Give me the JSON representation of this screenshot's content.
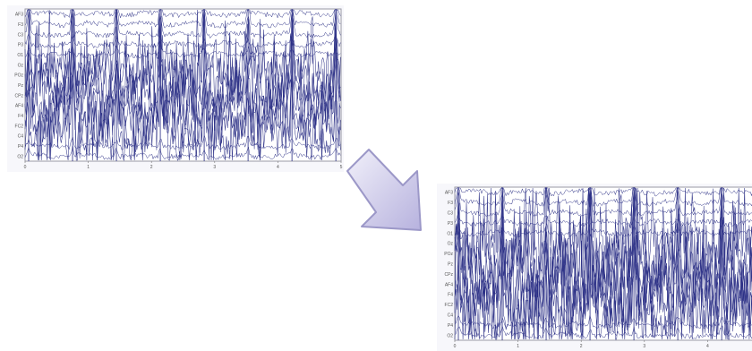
{
  "channels": [
    "AF3",
    "F3",
    "C3",
    "P3",
    "O1",
    "Oz",
    "POz",
    "Pz",
    "CPz",
    "AF4",
    "F4",
    "FC2",
    "C4",
    "P4",
    "O2"
  ],
  "time_ticks": [
    "0",
    "1",
    "2",
    "3",
    "4",
    "5"
  ],
  "colors": {
    "trace": "#2b2f86",
    "frame": "#9a9aa6",
    "arrow_fill_top": "#f1f0fa",
    "arrow_fill_bottom": "#b7b2de",
    "arrow_stroke": "#9c98c8"
  },
  "icon": "arrow-down-right-icon"
}
